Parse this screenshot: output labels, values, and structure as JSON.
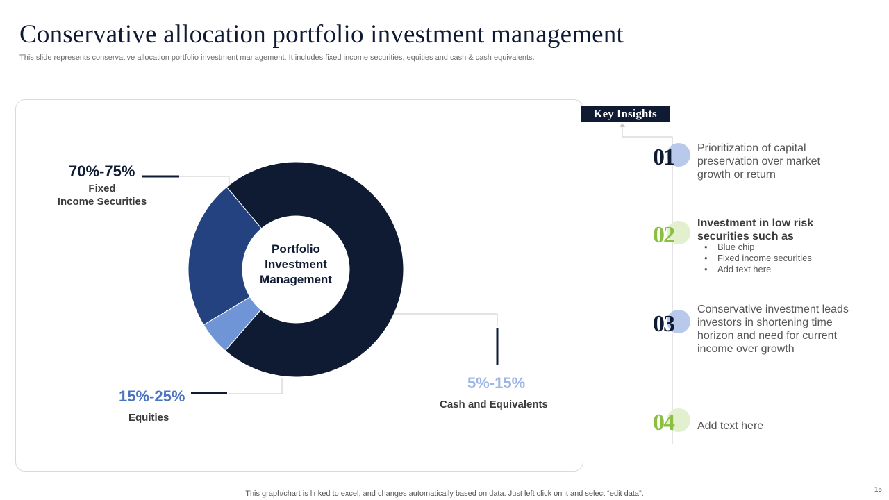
{
  "title": "Conservative allocation portfolio investment management",
  "subtitle": "This slide represents conservative allocation portfolio investment management. It includes fixed income securities, equities and cash & cash equivalents.",
  "chart_data": {
    "type": "pie",
    "center_label": "Portfolio Investment Management",
    "slices": [
      {
        "label": "Fixed Income Securities",
        "range_label": "70%-75%",
        "value": 72.5,
        "color": "#0f1b33"
      },
      {
        "label": "Cash and Equivalents",
        "range_label": "5%-15%",
        "value": 5,
        "color": "#6f95d6"
      },
      {
        "label": "Equities",
        "range_label": "15%-25%",
        "value": 22.5,
        "color": "#24427f"
      }
    ]
  },
  "labels": {
    "fixed_pct": "70%-75%",
    "fixed_line1": "Fixed",
    "fixed_line2": "Income Securities",
    "equities_pct": "15%-25%",
    "equities": "Equities",
    "cash_pct": "5%-15%",
    "cash": "Cash and Equivalents"
  },
  "colors": {
    "navy": "#0f1b33",
    "royal": "#24427f",
    "periwinkle": "#6f95d6",
    "light_blue": "#9db6e6",
    "green": "#8bbf3f",
    "light_green": "#e2f0cf",
    "light_circle_blue": "#b9c9ec"
  },
  "key_insights": {
    "title": "Key Insights",
    "items": [
      {
        "num": "01",
        "text": "Prioritization of capital preservation over market growth or return"
      },
      {
        "num": "02",
        "text": "Investment in low risk securities such as",
        "bullets": [
          "Blue chip",
          "Fixed income securities",
          "Add text here"
        ]
      },
      {
        "num": "03",
        "text": "Conservative investment leads investors in shortening time horizon and need for current income over growth"
      },
      {
        "num": "04",
        "text": "Add text here"
      }
    ]
  },
  "footer": "This graph/chart is linked to excel,  and changes automatically based on data. Just left click on it and select “edit data”.",
  "page_number": "15"
}
